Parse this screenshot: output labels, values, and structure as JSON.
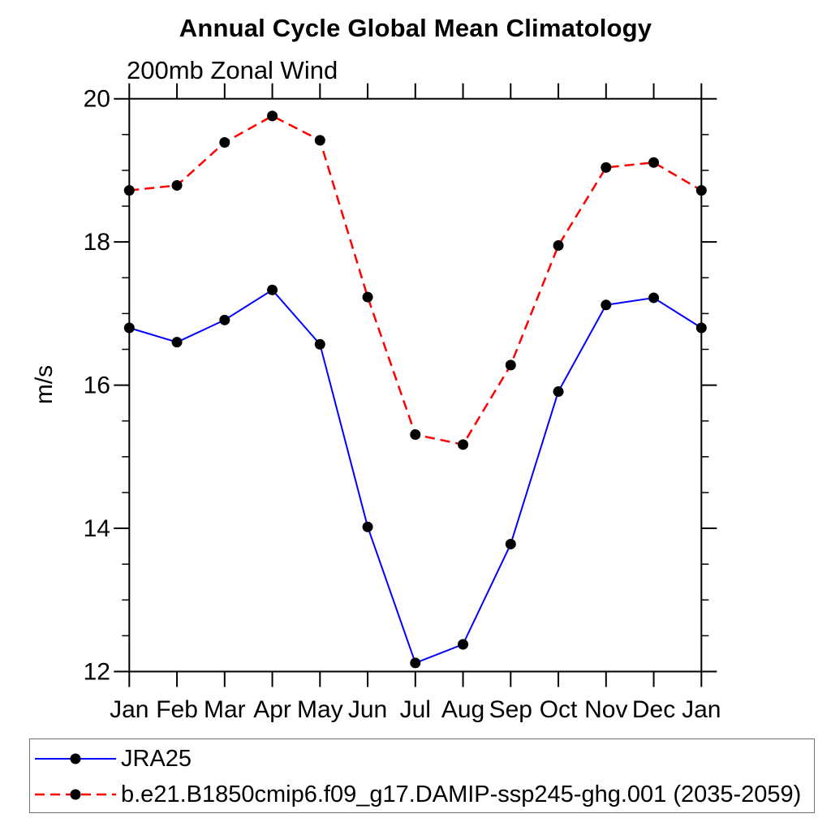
{
  "chart_data": {
    "type": "line",
    "title": "Annual Cycle Global Mean Climatology",
    "subtitle": "200mb Zonal Wind",
    "ylabel": "m/s",
    "categories": [
      "Jan",
      "Feb",
      "Mar",
      "Apr",
      "May",
      "Jun",
      "Jul",
      "Aug",
      "Sep",
      "Oct",
      "Nov",
      "Dec",
      "Jan"
    ],
    "ylim": [
      12,
      20
    ],
    "y_major_step": 2,
    "y_minor_step": 0.5,
    "y_major_tick_labels": [
      "12",
      "14",
      "16",
      "18",
      "20"
    ],
    "grid": false,
    "axis_color": "#000000",
    "legend_position": "bottom-left-box",
    "series": [
      {
        "name": "JRA25",
        "color": "#0000ff",
        "line_style": "solid",
        "line_width": 2,
        "marker": "filled-circle",
        "marker_color": "#000000",
        "values": [
          16.8,
          16.6,
          16.91,
          17.33,
          16.57,
          14.02,
          12.12,
          12.38,
          13.78,
          15.91,
          17.12,
          17.22,
          16.8
        ]
      },
      {
        "name": "b.e21.B1850cmip6.f09_g17.DAMIP-ssp245-ghg.001 (2035-2059)",
        "color": "#ff0000",
        "line_style": "dashed",
        "line_width": 2.5,
        "marker": "filled-circle",
        "marker_color": "#000000",
        "values": [
          18.72,
          18.79,
          19.39,
          19.76,
          19.42,
          17.23,
          15.31,
          15.17,
          16.28,
          17.95,
          19.04,
          19.11,
          18.72
        ]
      }
    ]
  }
}
